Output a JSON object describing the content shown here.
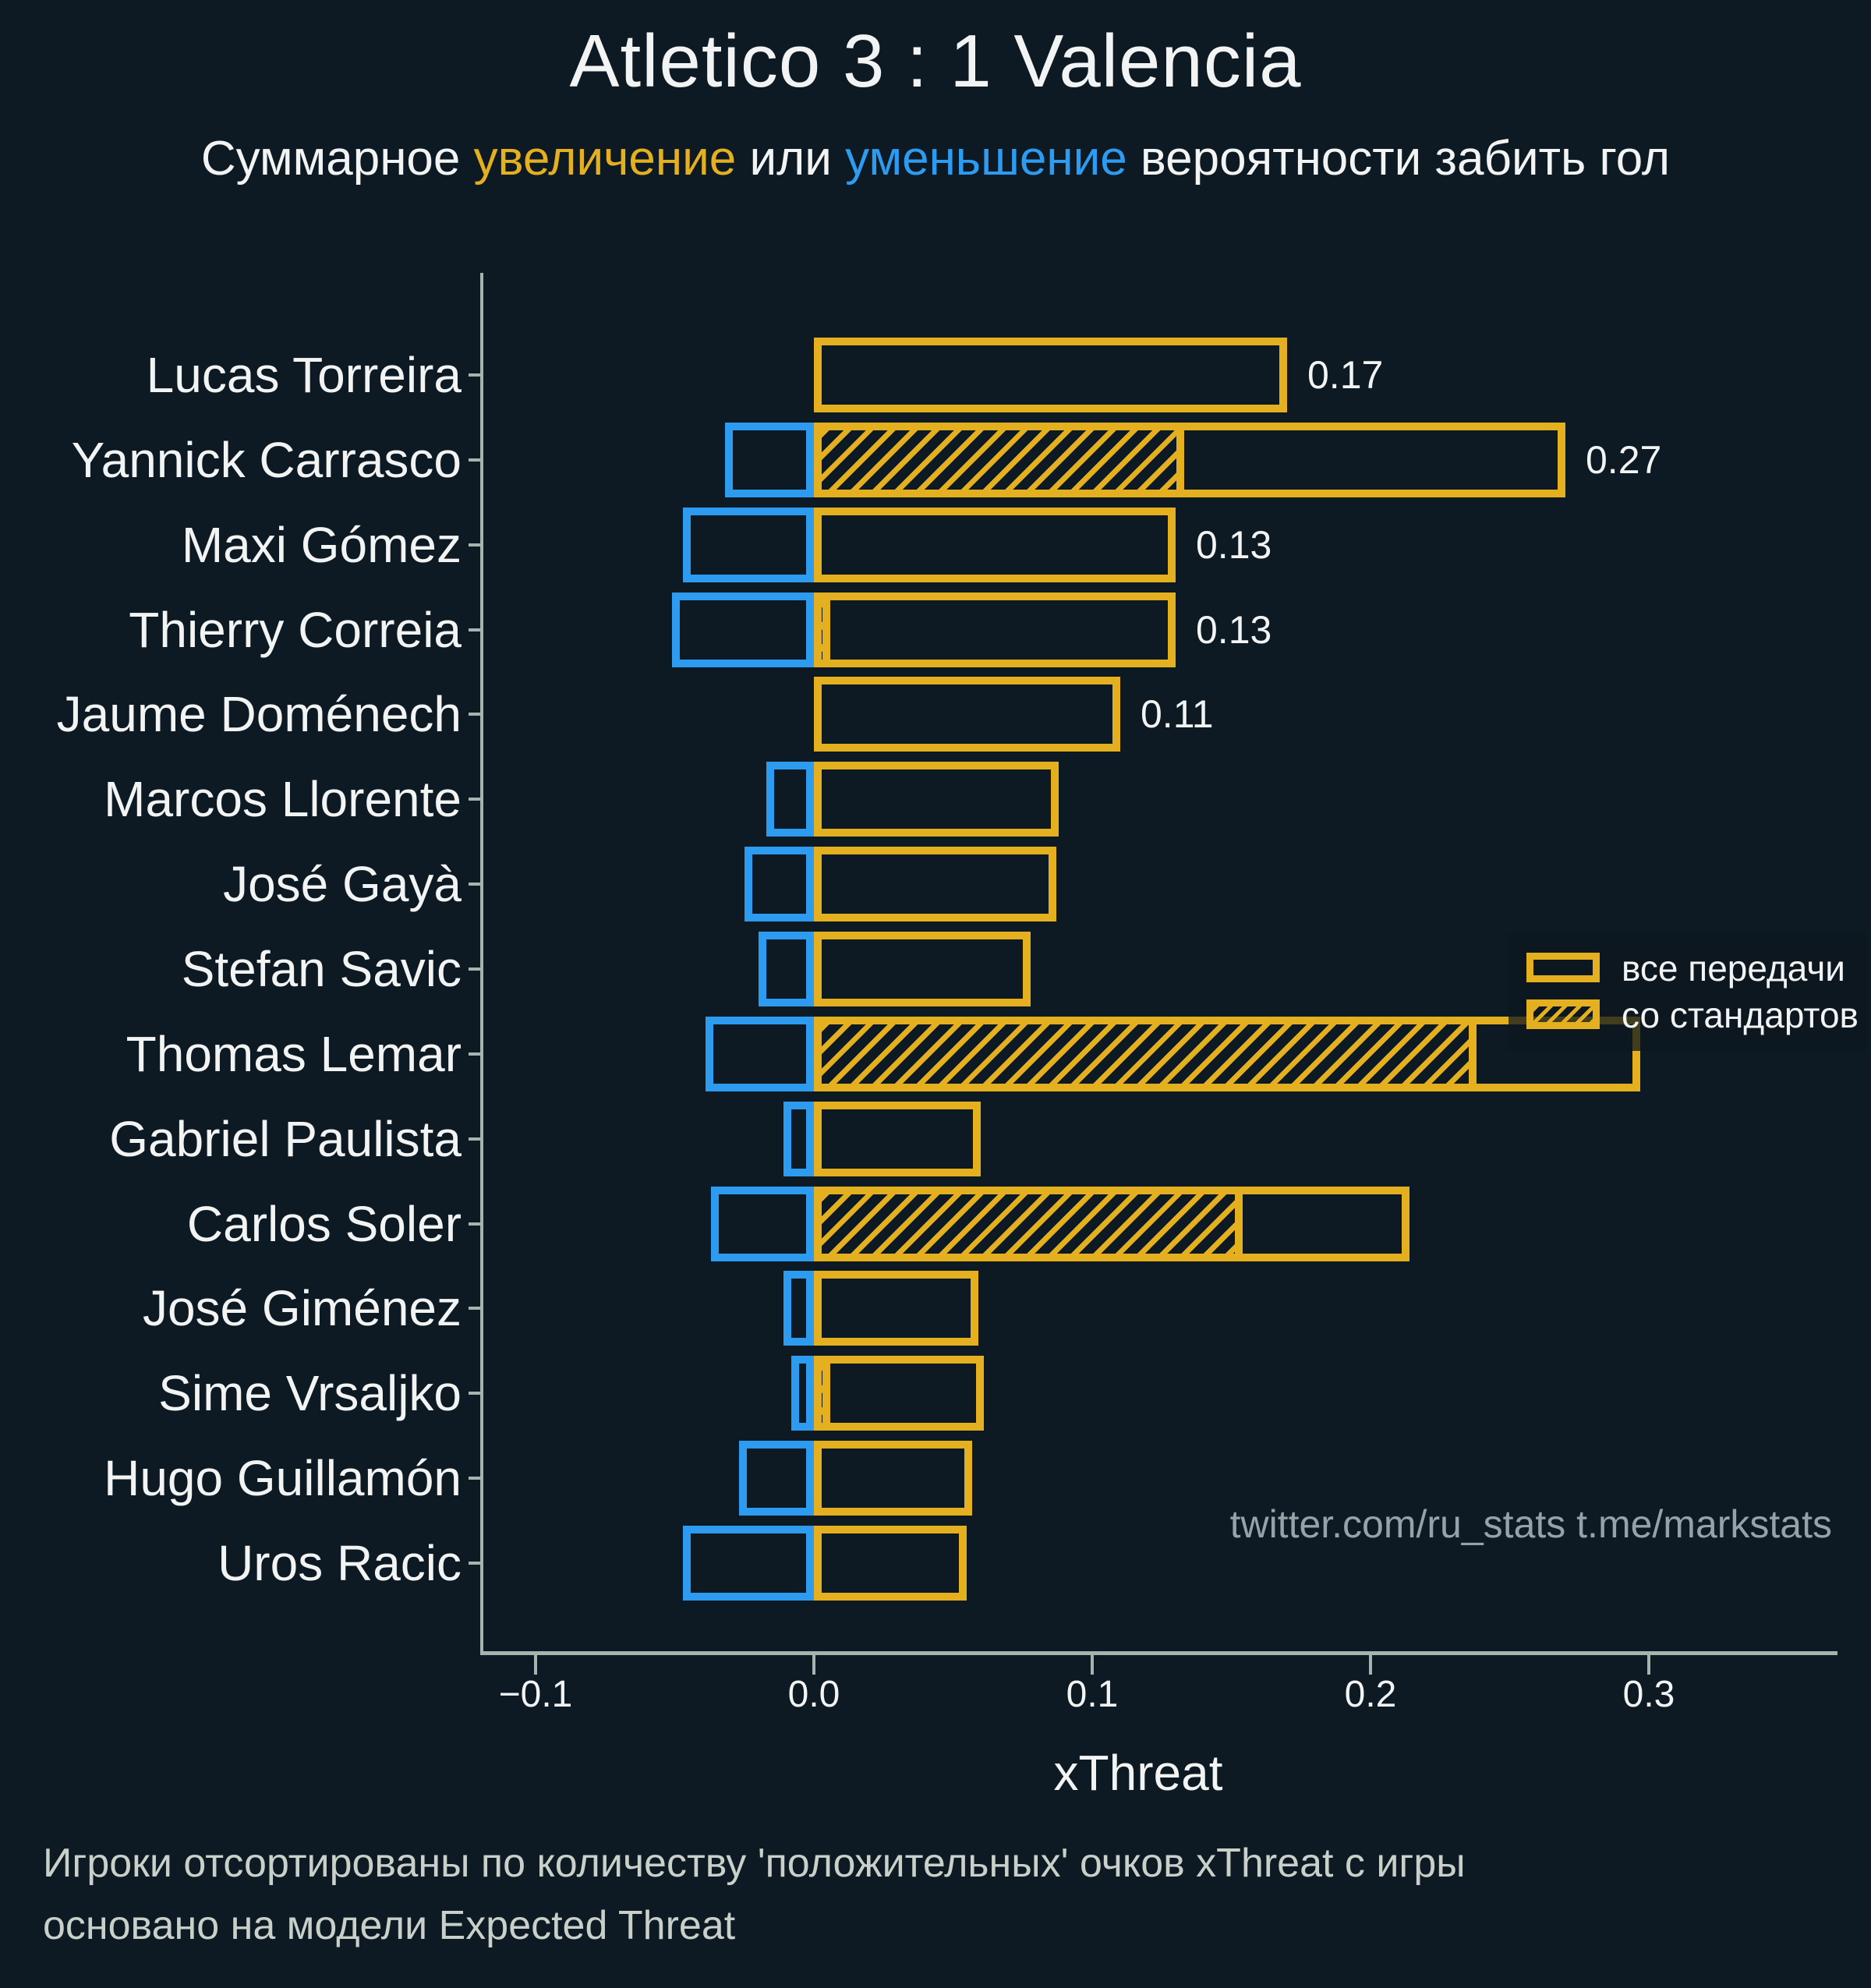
{
  "title": "Atletico 3 : 1 Valencia",
  "subtitle": {
    "pre": "Суммарное ",
    "increase": "увеличение",
    "mid": " или ",
    "decrease": "уменьшение",
    "post": " вероятности забить гол"
  },
  "legend": {
    "all_passes": "все передачи",
    "set_pieces": "со стандартов"
  },
  "watermark": "twitter.com/ru_stats  t.me/markstats",
  "footnote": {
    "line1": "Игроки отсортированы по количеству 'положительных' очков xThreat с игры",
    "line2": "основано на модели Expected Threat"
  },
  "colors": {
    "background": "#0e1a23",
    "gold": "#e4b020",
    "blue": "#2d9bf0",
    "axis": "#a6b4af",
    "text": "#f2f4f3",
    "watermark": "#97a1a8",
    "footnote": "#c9cfc9"
  },
  "chart_data": {
    "type": "bar",
    "orientation": "horizontal",
    "title": "Atletico 3 : 1 Valencia",
    "xlabel": "xThreat",
    "x_ticks": [
      -0.1,
      0.0,
      0.1,
      0.2,
      0.3
    ],
    "x_tick_labels": [
      "−0.1",
      "0.0",
      "0.1",
      "0.2",
      "0.3"
    ],
    "x_range": [
      -0.119,
      0.368
    ],
    "grid": false,
    "legend_entries": [
      "все передачи",
      "со стандартов"
    ],
    "players": [
      {
        "name": "Lucas Torreira",
        "positive": 0.17,
        "set_pieces": 0,
        "negative": 0,
        "label": "0.17"
      },
      {
        "name": "Yannick Carrasco",
        "positive": 0.27,
        "set_pieces": 0.133,
        "negative": -0.032,
        "label": "0.27"
      },
      {
        "name": "Maxi Gómez",
        "positive": 0.13,
        "set_pieces": 0,
        "negative": -0.047,
        "label": "0.13"
      },
      {
        "name": "Thierry Correia",
        "positive": 0.13,
        "set_pieces": 0.006,
        "negative": -0.051,
        "label": "0.13"
      },
      {
        "name": "Jaume Doménech",
        "positive": 0.11,
        "set_pieces": 0,
        "negative": 0,
        "label": "0.11"
      },
      {
        "name": "Marcos Llorente",
        "positive": 0.088,
        "set_pieces": 0,
        "negative": -0.017,
        "label": ""
      },
      {
        "name": "José Gayà",
        "positive": 0.087,
        "set_pieces": 0,
        "negative": -0.025,
        "label": ""
      },
      {
        "name": "Stefan Savic",
        "positive": 0.078,
        "set_pieces": 0,
        "negative": -0.02,
        "label": ""
      },
      {
        "name": "Thomas Lemar",
        "positive": 0.297,
        "set_pieces": 0.238,
        "negative": -0.039,
        "label": ""
      },
      {
        "name": "Gabriel Paulista",
        "positive": 0.06,
        "set_pieces": 0,
        "negative": -0.011,
        "label": ""
      },
      {
        "name": "Carlos Soler",
        "positive": 0.214,
        "set_pieces": 0.154,
        "negative": -0.037,
        "label": ""
      },
      {
        "name": "José Giménez",
        "positive": 0.059,
        "set_pieces": 0,
        "negative": -0.011,
        "label": ""
      },
      {
        "name": "Sime Vrsaljko",
        "positive": 0.061,
        "set_pieces": 0.006,
        "negative": -0.008,
        "label": ""
      },
      {
        "name": "Hugo Guillamón",
        "positive": 0.057,
        "set_pieces": 0,
        "negative": -0.027,
        "label": ""
      },
      {
        "name": "Uros Racic",
        "positive": 0.055,
        "set_pieces": 0,
        "negative": -0.047,
        "label": ""
      }
    ]
  }
}
